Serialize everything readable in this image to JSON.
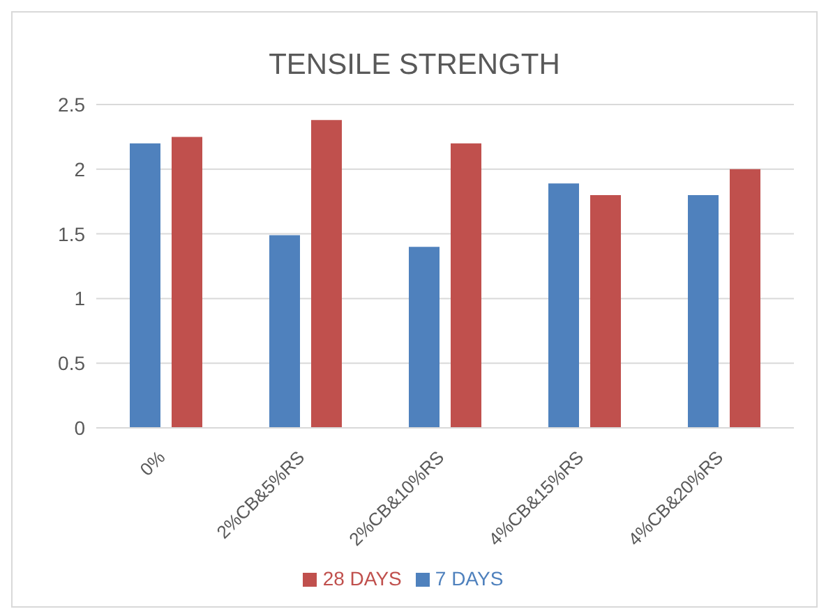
{
  "chart_data": {
    "type": "bar",
    "title": "TENSILE STRENGTH",
    "categories": [
      "0%",
      "2%CB&5%RS",
      "2%CB&10%RS",
      "4%CB&15%RS",
      "4%CB&20%RS"
    ],
    "series": [
      {
        "name": "7 DAYS",
        "color": "#4f81bd",
        "values": [
          2.2,
          1.49,
          1.4,
          1.89,
          1.8
        ]
      },
      {
        "name": "28 DAYS",
        "color": "#c0504d",
        "values": [
          2.25,
          2.38,
          2.2,
          1.8,
          2.0
        ]
      }
    ],
    "ylim": [
      0,
      2.5
    ],
    "yticks": [
      0,
      0.5,
      1,
      1.5,
      2,
      2.5
    ],
    "grid": "y",
    "legend": "bottom"
  }
}
